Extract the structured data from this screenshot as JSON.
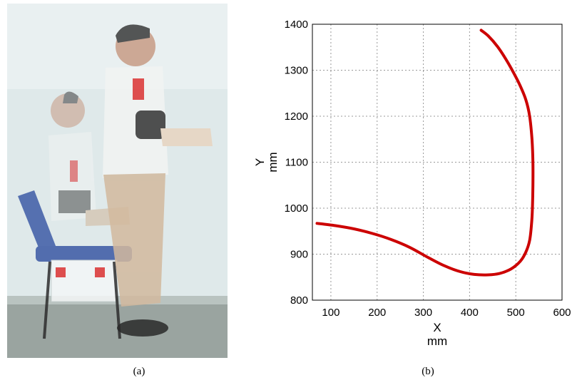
{
  "figure": {
    "caption_a": "(a)",
    "caption_b": "(b)"
  },
  "chart_data": {
    "type": "line",
    "title": "",
    "xlabel": "X",
    "xunit": "mm",
    "ylabel": "Y",
    "yunit": "mm",
    "xlim": [
      60,
      600
    ],
    "ylim": [
      800,
      1400
    ],
    "xticks": [
      100,
      200,
      300,
      400,
      500,
      600
    ],
    "yticks": [
      800,
      900,
      1000,
      1100,
      1200,
      1300,
      1400
    ],
    "grid": true,
    "line_color": "#cc0000",
    "series": [
      {
        "x": [
          70,
          110,
          150,
          190,
          230,
          270,
          310,
          345,
          380,
          410,
          440,
          465,
          490,
          510,
          522,
          530,
          534,
          536,
          537,
          537,
          535,
          530,
          522,
          510,
          495,
          478,
          460,
          440,
          425
        ],
        "y": [
          967,
          962,
          955,
          945,
          932,
          915,
          893,
          875,
          862,
          856,
          855,
          858,
          868,
          885,
          905,
          930,
          965,
          1000,
          1050,
          1100,
          1150,
          1200,
          1235,
          1265,
          1295,
          1325,
          1352,
          1375,
          1387
        ]
      }
    ]
  }
}
